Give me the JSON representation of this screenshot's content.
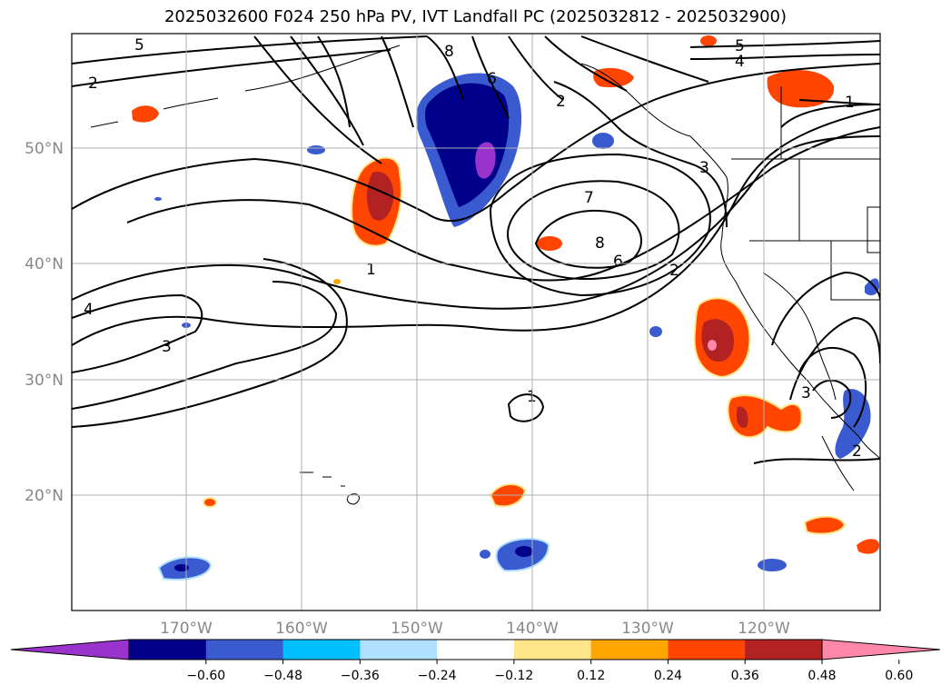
{
  "title": "2025032600 F024 250 hPa PV, IVT Landfall PC (2025032812 - 2025032900)",
  "lat_labels": [
    "50°N",
    "40°N",
    "30°N",
    "20°N"
  ],
  "lon_labels": [
    "170°W",
    "160°W",
    "150°W",
    "140°W",
    "130°W",
    "120°W"
  ],
  "colorbar": {
    "ticks": [
      "−0.60",
      "−0.48",
      "−0.36",
      "−0.24",
      "−0.12",
      "0.12",
      "0.24",
      "0.36",
      "0.48",
      "0.60"
    ],
    "colors": [
      "#9933cc",
      "#00008b",
      "#3a5bd0",
      "#00bfff",
      "#b0e0ff",
      "#ffffff",
      "#ffe68a",
      "#ffa500",
      "#ff4500",
      "#b22222",
      "#ff88aa"
    ]
  },
  "contour_labels": [
    "5",
    "2",
    "8",
    "6",
    "2",
    "5",
    "4",
    "1",
    "3",
    "7",
    "8",
    "6",
    "2",
    "1",
    "4",
    "3",
    "1",
    "3",
    "2"
  ],
  "colors": {
    "contour": "#000000",
    "coast": "#000000",
    "grid": "#b0b0b0",
    "axis_label": "#888888"
  }
}
